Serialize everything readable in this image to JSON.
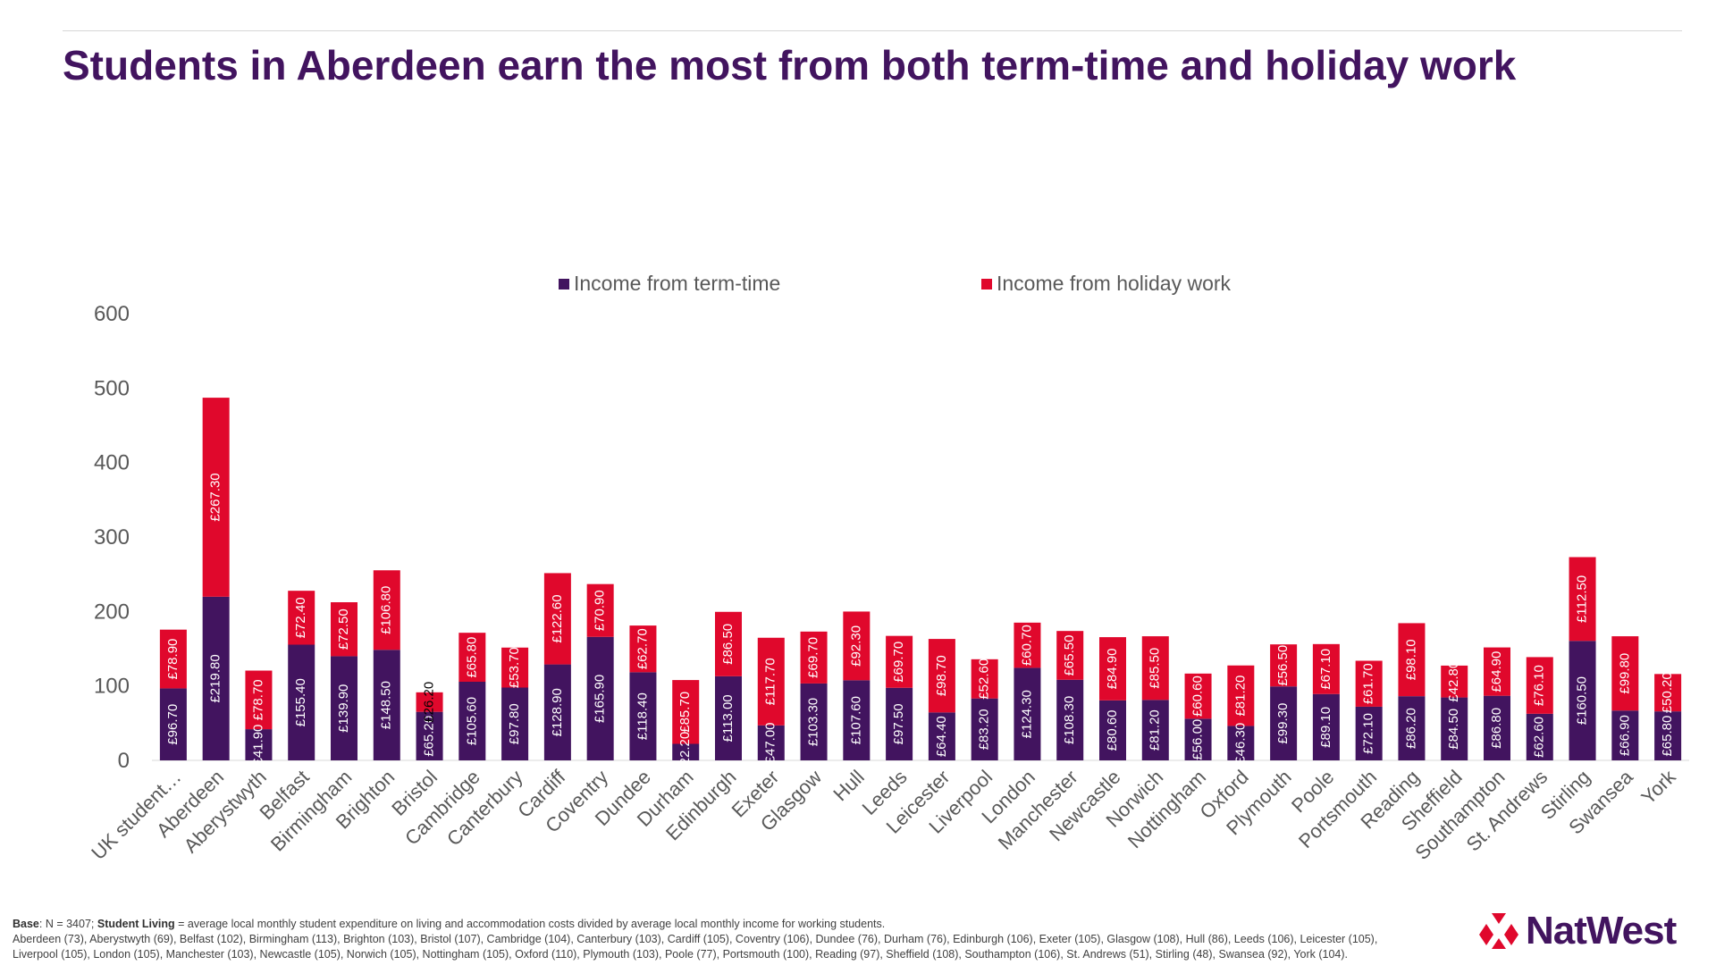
{
  "page": {
    "title": "Students in Aberdeen earn the most from both term-time and holiday work"
  },
  "colors": {
    "title": "#42145f",
    "term_time": "#42145f",
    "holiday": "#e0082c",
    "axis_text": "#595959",
    "brand": "#42145f"
  },
  "footnote": {
    "base_label": "Base",
    "base_text": ": N = 3407;  ",
    "living_label": "Student Living",
    "living_text": " = average local monthly student expenditure on living and accommodation costs divided by average local monthly income for working students.",
    "detail": "Aberdeen (73), Aberystwyth (69), Belfast (102), Birmingham (113), Brighton (103), Bristol (107), Cambridge (104), Canterbury (103), Cardiff (105), Coventry (106), Dundee (76), Durham (76), Edinburgh (106), Exeter (105), Glasgow (108), Hull (86), Leeds (106), Leicester (105), Liverpool (105), London (105), Manchester (103), Newcastle (105), Norwich (105), Nottingham (105), Oxford (110), Plymouth (103), Poole (77), Portsmouth (100), Reading (97), Sheffield (108), Southampton (106), St. Andrews (51), Stirling (48), Swansea (92), York (104)."
  },
  "logo": {
    "text": "NatWest",
    "icon": "natwest-logo-icon"
  },
  "chart_data": {
    "type": "bar",
    "stacked": true,
    "title": "Students in Aberdeen earn the most from both term-time and holiday work",
    "xlabel": "",
    "ylabel": "",
    "ylim": [
      0,
      600
    ],
    "yticks": [
      0,
      100,
      200,
      300,
      400,
      500,
      600
    ],
    "grid": false,
    "legend_position": "top-center",
    "categories": [
      "UK student…",
      "Aberdeen",
      "Aberystwyth",
      "Belfast",
      "Birmingham",
      "Brighton",
      "Bristol",
      "Cambridge",
      "Canterbury",
      "Cardiff",
      "Coventry",
      "Dundee",
      "Durham",
      "Edinburgh",
      "Exeter",
      "Glasgow",
      "Hull",
      "Leeds",
      "Leicester",
      "Liverpool",
      "London",
      "Manchester",
      "Newcastle",
      "Norwich",
      "Nottingham",
      "Oxford",
      "Plymouth",
      "Poole",
      "Portsmouth",
      "Reading",
      "Sheffield",
      "Southampton",
      "St. Andrews",
      "Stirling",
      "Swansea",
      "York"
    ],
    "series": [
      {
        "name": "Income from term-time",
        "color": "#42145f",
        "values": [
          96.7,
          219.8,
          41.9,
          155.4,
          139.9,
          148.5,
          65.2,
          105.6,
          97.8,
          128.9,
          165.9,
          118.4,
          22.2,
          113.0,
          47.0,
          103.3,
          107.6,
          97.5,
          64.4,
          83.2,
          124.3,
          108.3,
          80.6,
          81.2,
          56.0,
          46.3,
          99.3,
          89.1,
          72.1,
          86.2,
          84.5,
          86.8,
          62.6,
          160.5,
          66.9,
          65.8
        ],
        "labels": [
          "£96.70",
          "£219.80",
          "£41.90",
          "£155.40",
          "£139.90",
          "£148.50",
          "£65.20",
          "£105.60",
          "£97.80",
          "£128.90",
          "£165.90",
          "£118.40",
          "£22.20",
          "£113.00",
          "£47.00",
          "£103.30",
          "£107.60",
          "£97.50",
          "£64.40",
          "£83.20",
          "£124.30",
          "£108.30",
          "£80.60",
          "£81.20",
          "£56.00",
          "£46.30",
          "£99.30",
          "£89.10",
          "£72.10",
          "£86.20",
          "£84.50",
          "£86.80",
          "£62.60",
          "£160.50",
          "£66.90",
          "£65.80"
        ]
      },
      {
        "name": "Income from holiday work",
        "color": "#e0082c",
        "values": [
          78.9,
          267.3,
          78.7,
          72.4,
          72.5,
          106.8,
          26.2,
          65.8,
          53.7,
          122.6,
          70.9,
          62.7,
          85.7,
          86.5,
          117.7,
          69.7,
          92.3,
          69.7,
          98.7,
          52.6,
          60.7,
          65.5,
          84.9,
          85.5,
          60.6,
          81.2,
          56.5,
          67.1,
          61.7,
          98.1,
          42.8,
          64.9,
          76.1,
          112.5,
          99.8,
          50.2
        ],
        "labels": [
          "£78.90",
          "£267.30",
          "£78.70",
          "£72.40",
          "£72.50",
          "£106.80",
          "£26.20",
          "£65.80",
          "£53.70",
          "£122.60",
          "£70.90",
          "£62.70",
          "£85.70",
          "£86.50",
          "£117.70",
          "£69.70",
          "£92.30",
          "£69.70",
          "£98.70",
          "£52.60",
          "£60.70",
          "£65.50",
          "£84.90",
          "£85.50",
          "£60.60",
          "£81.20",
          "£56.50",
          "£67.10",
          "£61.70",
          "£98.10",
          "£42.80",
          "£64.90",
          "£76.10",
          "£112.50",
          "£99.80",
          "£50.20"
        ]
      }
    ]
  }
}
